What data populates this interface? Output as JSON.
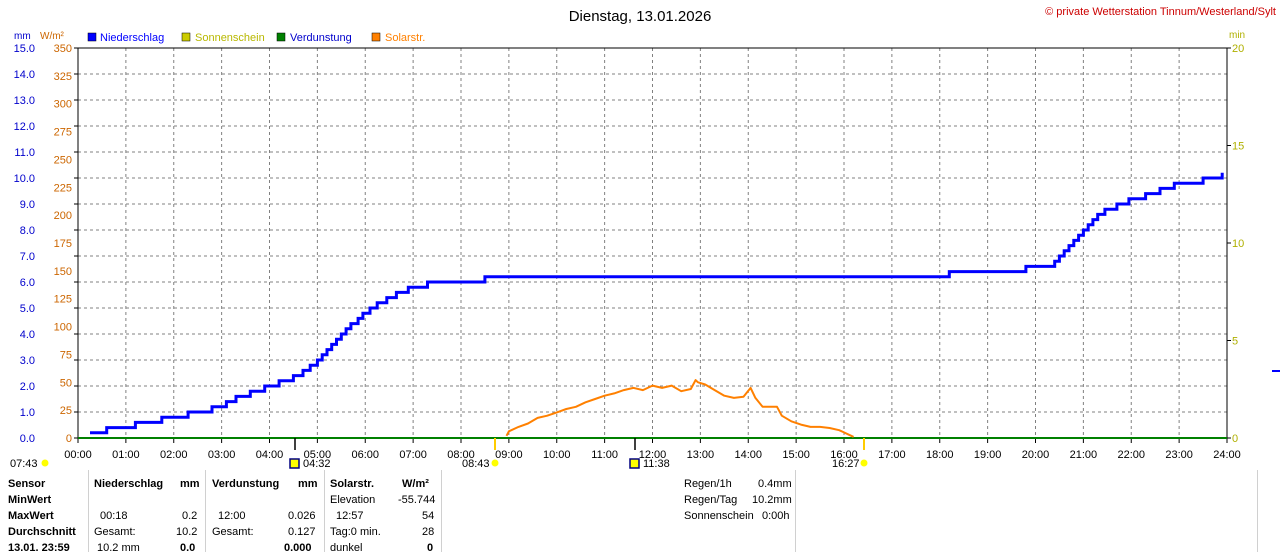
{
  "title": "Dienstag, 13.01.2026",
  "copyright": "© private Wetterstation Tinnum/Westerland/Sylt",
  "units": {
    "left_mm": "mm",
    "left_wm2": "W/m²",
    "right_min": "min"
  },
  "legend": [
    {
      "label": "Niederschlag",
      "color": "#0000ff"
    },
    {
      "label": "Sonnenschein",
      "color": "#cccc00"
    },
    {
      "label": "Verdunstung",
      "color": "#008000"
    },
    {
      "label": "Solarstr.",
      "color": "#ff8000"
    }
  ],
  "colors": {
    "rain": "#0000ff",
    "sun": "#cccc00",
    "evap": "#008000",
    "solar": "#ff8000",
    "grid": "#808080",
    "axis_mm": "#0000cc",
    "axis_wm2": "#cc6600",
    "axis_min": "#b0b000"
  },
  "chart_data": {
    "type": "line",
    "x_ticks": [
      "00:00",
      "01:00",
      "02:00",
      "03:00",
      "04:00",
      "05:00",
      "06:00",
      "07:00",
      "08:00",
      "09:00",
      "10:00",
      "11:00",
      "12:00",
      "13:00",
      "14:00",
      "15:00",
      "16:00",
      "17:00",
      "18:00",
      "19:00",
      "20:00",
      "21:00",
      "22:00",
      "23:00",
      "24:00"
    ],
    "xlim_hours": [
      0,
      24
    ],
    "y_mm_ticks": [
      "0.0",
      "1.0",
      "2.0",
      "3.0",
      "4.0",
      "5.0",
      "6.0",
      "7.0",
      "8.0",
      "9.0",
      "10.0",
      "11.0",
      "12.0",
      "13.0",
      "14.0",
      "15.0"
    ],
    "ylim_mm": [
      0,
      15
    ],
    "y_wm2_ticks": [
      "0",
      "25",
      "50",
      "75",
      "100",
      "125",
      "150",
      "175",
      "200",
      "225",
      "250",
      "275",
      "300",
      "325",
      "350"
    ],
    "ylim_wm2": [
      0,
      350
    ],
    "y_min_ticks": [
      "0",
      "5",
      "10",
      "15",
      "20"
    ],
    "ylim_min": [
      0,
      20
    ],
    "grid": true,
    "series": [
      {
        "name": "Niederschlag",
        "unit": "mm",
        "points": [
          [
            0.25,
            0.2
          ],
          [
            0.6,
            0.2
          ],
          [
            0.6,
            0.4
          ],
          [
            1.2,
            0.4
          ],
          [
            1.2,
            0.6
          ],
          [
            1.75,
            0.6
          ],
          [
            1.75,
            0.8
          ],
          [
            2.3,
            0.8
          ],
          [
            2.3,
            1.0
          ],
          [
            2.8,
            1.0
          ],
          [
            2.8,
            1.2
          ],
          [
            3.1,
            1.2
          ],
          [
            3.1,
            1.4
          ],
          [
            3.3,
            1.4
          ],
          [
            3.3,
            1.6
          ],
          [
            3.6,
            1.6
          ],
          [
            3.6,
            1.8
          ],
          [
            3.9,
            1.8
          ],
          [
            3.9,
            2.0
          ],
          [
            4.2,
            2.0
          ],
          [
            4.2,
            2.2
          ],
          [
            4.5,
            2.2
          ],
          [
            4.5,
            2.4
          ],
          [
            4.7,
            2.4
          ],
          [
            4.7,
            2.6
          ],
          [
            4.85,
            2.6
          ],
          [
            4.85,
            2.8
          ],
          [
            5.0,
            2.8
          ],
          [
            5.0,
            3.0
          ],
          [
            5.1,
            3.0
          ],
          [
            5.1,
            3.2
          ],
          [
            5.2,
            3.2
          ],
          [
            5.2,
            3.4
          ],
          [
            5.3,
            3.4
          ],
          [
            5.3,
            3.6
          ],
          [
            5.4,
            3.6
          ],
          [
            5.4,
            3.8
          ],
          [
            5.5,
            3.8
          ],
          [
            5.5,
            4.0
          ],
          [
            5.6,
            4.0
          ],
          [
            5.6,
            4.2
          ],
          [
            5.7,
            4.2
          ],
          [
            5.7,
            4.4
          ],
          [
            5.85,
            4.4
          ],
          [
            5.85,
            4.6
          ],
          [
            5.95,
            4.6
          ],
          [
            5.95,
            4.8
          ],
          [
            6.1,
            4.8
          ],
          [
            6.1,
            5.0
          ],
          [
            6.25,
            5.0
          ],
          [
            6.25,
            5.2
          ],
          [
            6.45,
            5.2
          ],
          [
            6.45,
            5.4
          ],
          [
            6.65,
            5.4
          ],
          [
            6.65,
            5.6
          ],
          [
            6.9,
            5.6
          ],
          [
            6.9,
            5.8
          ],
          [
            7.3,
            5.8
          ],
          [
            7.3,
            6.0
          ],
          [
            8.5,
            6.0
          ],
          [
            8.5,
            6.2
          ],
          [
            18.2,
            6.2
          ],
          [
            18.2,
            6.4
          ],
          [
            19.8,
            6.4
          ],
          [
            19.8,
            6.6
          ],
          [
            20.4,
            6.6
          ],
          [
            20.4,
            6.8
          ],
          [
            20.5,
            6.8
          ],
          [
            20.5,
            7.0
          ],
          [
            20.6,
            7.0
          ],
          [
            20.6,
            7.2
          ],
          [
            20.7,
            7.2
          ],
          [
            20.7,
            7.4
          ],
          [
            20.8,
            7.4
          ],
          [
            20.8,
            7.6
          ],
          [
            20.9,
            7.6
          ],
          [
            20.9,
            7.8
          ],
          [
            21.0,
            7.8
          ],
          [
            21.0,
            8.0
          ],
          [
            21.1,
            8.0
          ],
          [
            21.1,
            8.2
          ],
          [
            21.2,
            8.2
          ],
          [
            21.2,
            8.4
          ],
          [
            21.3,
            8.4
          ],
          [
            21.3,
            8.6
          ],
          [
            21.45,
            8.6
          ],
          [
            21.45,
            8.8
          ],
          [
            21.7,
            8.8
          ],
          [
            21.7,
            9.0
          ],
          [
            21.95,
            9.0
          ],
          [
            21.95,
            9.2
          ],
          [
            22.3,
            9.2
          ],
          [
            22.3,
            9.4
          ],
          [
            22.6,
            9.4
          ],
          [
            22.6,
            9.6
          ],
          [
            22.9,
            9.6
          ],
          [
            22.9,
            9.8
          ],
          [
            23.5,
            9.8
          ],
          [
            23.5,
            10.0
          ],
          [
            23.9,
            10.0
          ],
          [
            23.9,
            10.2
          ]
        ]
      },
      {
        "name": "Solarstr.",
        "unit": "W/m²",
        "points": [
          [
            8.95,
            2
          ],
          [
            9.0,
            6
          ],
          [
            9.2,
            10
          ],
          [
            9.4,
            13
          ],
          [
            9.6,
            18
          ],
          [
            9.8,
            20
          ],
          [
            10.0,
            23
          ],
          [
            10.2,
            26
          ],
          [
            10.4,
            28
          ],
          [
            10.6,
            32
          ],
          [
            10.8,
            35
          ],
          [
            11.0,
            38
          ],
          [
            11.2,
            40
          ],
          [
            11.4,
            43
          ],
          [
            11.6,
            45
          ],
          [
            11.8,
            43
          ],
          [
            12.0,
            47
          ],
          [
            12.2,
            45
          ],
          [
            12.4,
            47
          ],
          [
            12.6,
            42
          ],
          [
            12.8,
            44
          ],
          [
            12.9,
            52
          ],
          [
            12.95,
            50
          ],
          [
            13.1,
            48
          ],
          [
            13.3,
            43
          ],
          [
            13.5,
            38
          ],
          [
            13.7,
            36
          ],
          [
            13.9,
            37
          ],
          [
            14.05,
            45
          ],
          [
            14.15,
            36
          ],
          [
            14.3,
            28
          ],
          [
            14.4,
            28
          ],
          [
            14.6,
            28
          ],
          [
            14.7,
            20
          ],
          [
            14.9,
            15
          ],
          [
            15.1,
            12
          ],
          [
            15.3,
            10
          ],
          [
            15.5,
            10
          ],
          [
            15.7,
            9
          ],
          [
            15.9,
            7
          ],
          [
            16.0,
            5
          ],
          [
            16.1,
            3
          ],
          [
            16.2,
            1
          ]
        ]
      },
      {
        "name": "Verdunstung",
        "unit": "mm",
        "points": [
          [
            0,
            0
          ],
          [
            24,
            0
          ]
        ]
      }
    ],
    "markers": [
      {
        "label": "07:43",
        "type": "sunrise"
      },
      {
        "label": "04:32",
        "type": "moon"
      },
      {
        "label": "08:43",
        "type": "sun"
      },
      {
        "label": "11:38",
        "type": "moon"
      },
      {
        "label": "16:27",
        "type": "sun"
      }
    ]
  },
  "stats": {
    "labels": {
      "sensor": "Sensor",
      "min": "MinWert",
      "max": "MaxWert",
      "avg": "Durchschnitt",
      "last": "13.01. 23:59"
    },
    "rain": {
      "head": "Niederschlag",
      "unit": "mm",
      "max_time": "00:18",
      "max_val": "0.2",
      "total_label": "Gesamt:",
      "total_val": "10.2",
      "last_val": "10.2 mm",
      "last_rate": "0.0"
    },
    "evap": {
      "head": "Verdunstung",
      "unit": "mm",
      "max_time": "12:00",
      "max_val": "0.026",
      "total_label": "Gesamt:",
      "total_val": "0.127",
      "last_val": "0.000"
    },
    "solar": {
      "head": "Solarstr.",
      "unit": "W/m²",
      "elev_label": "Elevation",
      "elev_val": "-55.744",
      "max_time": "12:57",
      "max_val": "54",
      "day_label": "Tag:0 min.",
      "day_val": "28",
      "dark_label": "dunkel",
      "dark_val": "0"
    },
    "summary": {
      "regen_h_label": "Regen/1h",
      "regen_h_val": "0.4mm",
      "regen_d_label": "Regen/Tag",
      "regen_d_val": "10.2mm",
      "sun_label": "Sonnenschein",
      "sun_val": "0:00h"
    }
  }
}
